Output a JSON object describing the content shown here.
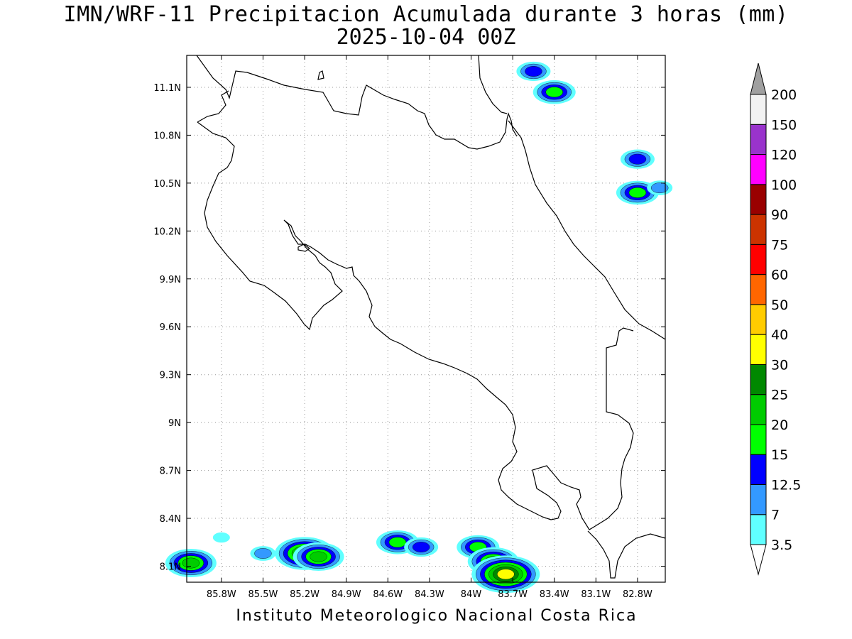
{
  "title": {
    "line1": "IMN/WRF-11 Precipitacion Acumulada durante 3 horas (mm)",
    "line2": "2025-10-04 00Z"
  },
  "footer": "Instituto Meteorologico Nacional Costa Rica",
  "map": {
    "lon_range": [
      -86.05,
      -82.6
    ],
    "lat_range": [
      8.0,
      11.3
    ],
    "lon_ticks": [
      {
        "value": -85.8,
        "label": "85.8W"
      },
      {
        "value": -85.5,
        "label": "85.5W"
      },
      {
        "value": -85.2,
        "label": "85.2W"
      },
      {
        "value": -84.9,
        "label": "84.9W"
      },
      {
        "value": -84.6,
        "label": "84.6W"
      },
      {
        "value": -84.3,
        "label": "84.3W"
      },
      {
        "value": -84.0,
        "label": "84W"
      },
      {
        "value": -83.7,
        "label": "83.7W"
      },
      {
        "value": -83.4,
        "label": "83.4W"
      },
      {
        "value": -83.1,
        "label": "83.1W"
      },
      {
        "value": -82.8,
        "label": "82.8W"
      }
    ],
    "lat_ticks": [
      {
        "value": 11.1,
        "label": "11.1N"
      },
      {
        "value": 10.8,
        "label": "10.8N"
      },
      {
        "value": 10.5,
        "label": "10.5N"
      },
      {
        "value": 10.2,
        "label": "10.2N"
      },
      {
        "value": 9.9,
        "label": "9.9N"
      },
      {
        "value": 9.6,
        "label": "9.6N"
      },
      {
        "value": 9.3,
        "label": "9.3N"
      },
      {
        "value": 9.0,
        "label": "9N"
      },
      {
        "value": 8.7,
        "label": "8.7N"
      },
      {
        "value": 8.4,
        "label": "8.4N"
      },
      {
        "value": 8.1,
        "label": "8.1N"
      }
    ],
    "grid": true
  },
  "colorbar": {
    "under_color": "#ffffff",
    "over_color": "#a0a0a0",
    "segments": [
      {
        "color": "#60ffff"
      },
      {
        "color": "#3399ff"
      },
      {
        "color": "#0000ff"
      },
      {
        "color": "#00ff00"
      },
      {
        "color": "#00cc00"
      },
      {
        "color": "#008800"
      },
      {
        "color": "#ffff00"
      },
      {
        "color": "#ffcc00"
      },
      {
        "color": "#ff6600"
      },
      {
        "color": "#ff0000"
      },
      {
        "color": "#cc3300"
      },
      {
        "color": "#990000"
      },
      {
        "color": "#ff00ff"
      },
      {
        "color": "#9933cc"
      },
      {
        "color": "#f2f2f2"
      }
    ],
    "labels": [
      "3.5",
      "7",
      "12.5",
      "15",
      "20",
      "25",
      "30",
      "40",
      "50",
      "60",
      "75",
      "90",
      "100",
      "120",
      "150",
      "200"
    ]
  },
  "precip_cells": [
    {
      "lon": -85.8,
      "lat": 8.28,
      "level": 1
    },
    {
      "lon": -85.5,
      "lat": 8.18,
      "level": 2
    },
    {
      "lon": -85.2,
      "lat": 8.18,
      "level": 6
    },
    {
      "lon": -85.1,
      "lat": 8.16,
      "level": 5
    },
    {
      "lon": -84.53,
      "lat": 8.25,
      "level": 4
    },
    {
      "lon": -84.36,
      "lat": 8.22,
      "level": 3
    },
    {
      "lon": -83.95,
      "lat": 8.22,
      "level": 4
    },
    {
      "lon": -83.84,
      "lat": 8.13,
      "level": 5
    },
    {
      "lon": -83.75,
      "lat": 8.05,
      "level": 7
    },
    {
      "lon": -86.02,
      "lat": 8.12,
      "level": 5
    },
    {
      "lon": -83.55,
      "lat": 11.2,
      "level": 3
    },
    {
      "lon": -83.4,
      "lat": 11.07,
      "level": 4
    },
    {
      "lon": -82.8,
      "lat": 10.65,
      "level": 3
    },
    {
      "lon": -82.8,
      "lat": 10.44,
      "level": 4
    },
    {
      "lon": -82.64,
      "lat": 10.47,
      "level": 2
    }
  ]
}
